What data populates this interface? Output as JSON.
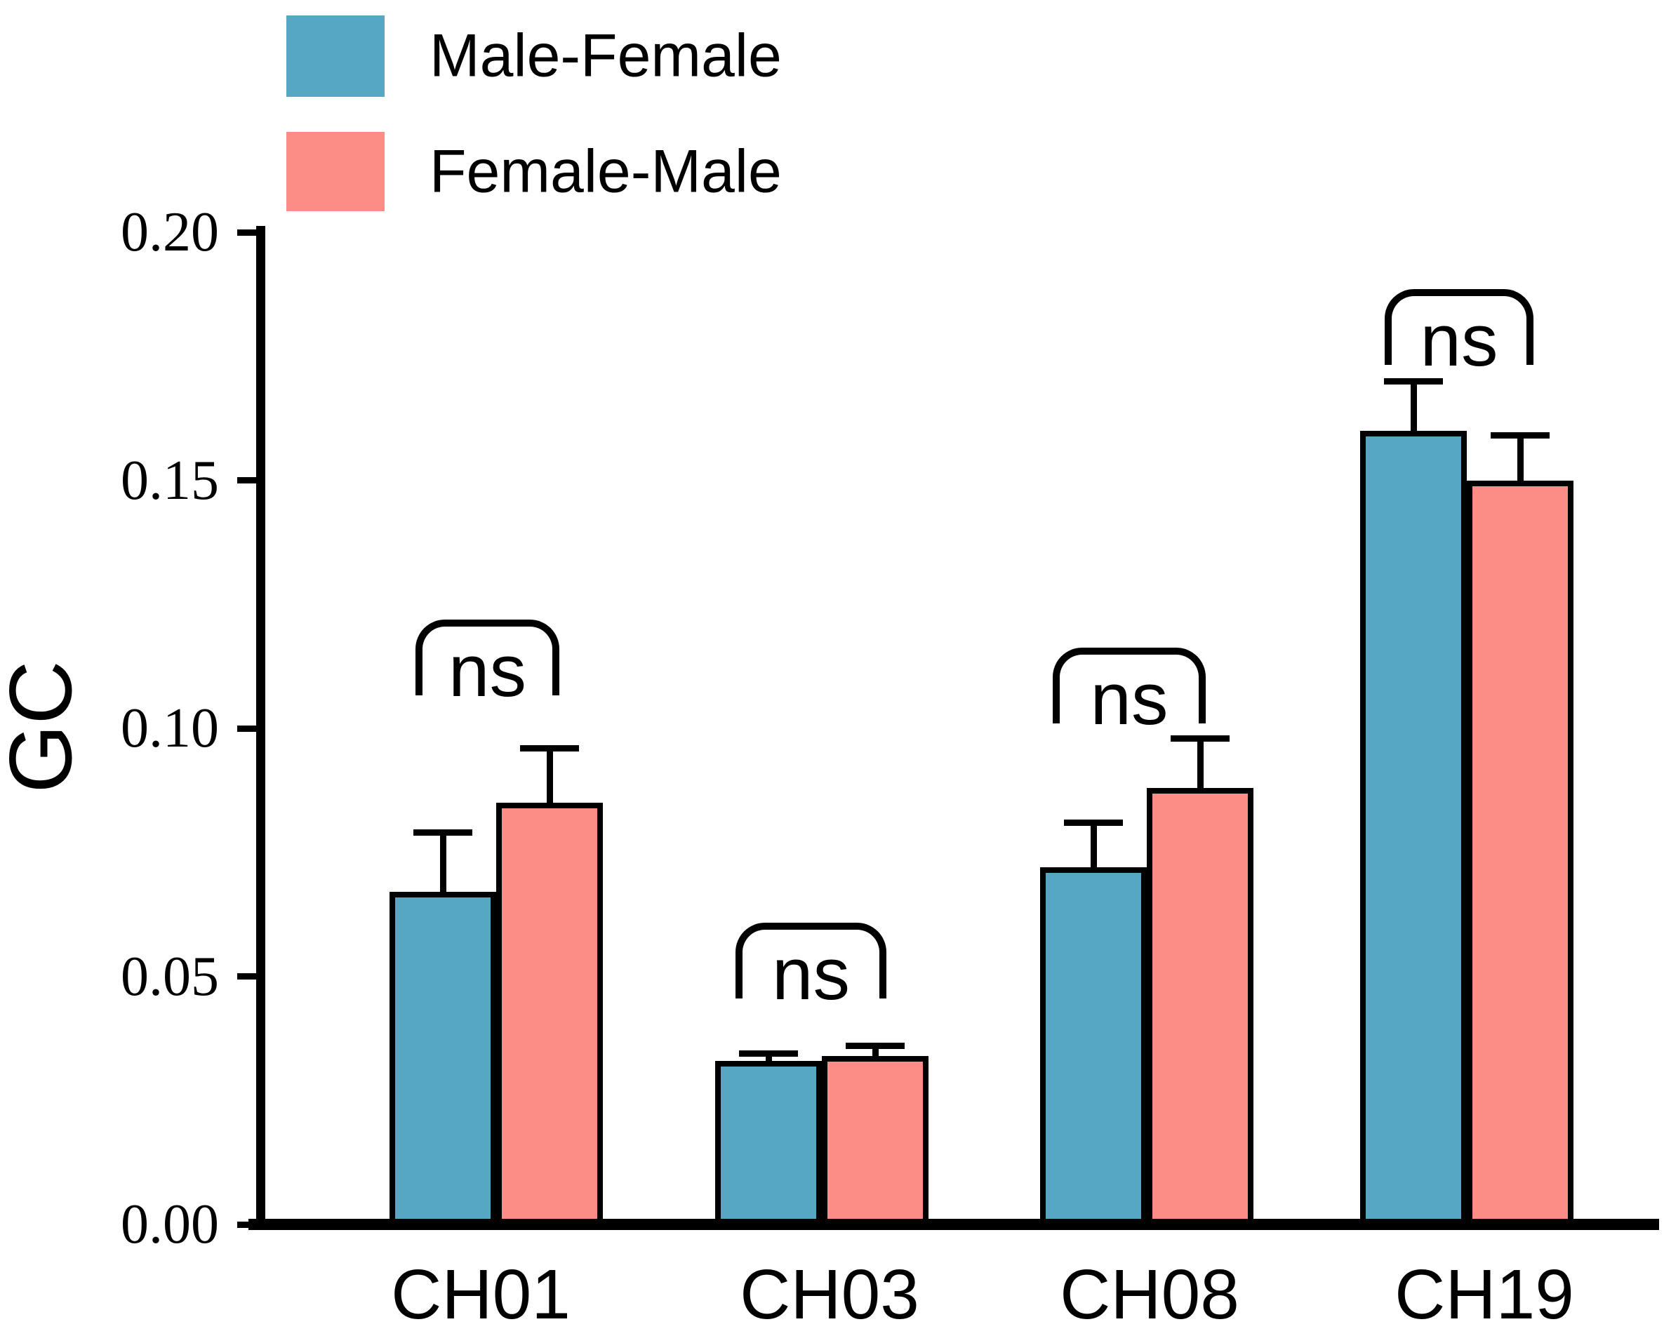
{
  "legend": {
    "items": [
      {
        "label": "Male-Female",
        "color": "#56A7C4"
      },
      {
        "label": "Female-Male",
        "color": "#FC8D86"
      }
    ]
  },
  "y_axis": {
    "label": "GC",
    "tick_labels": [
      "0.20",
      "0.15",
      "0.10",
      "0.05",
      "0.00"
    ],
    "tick_values": [
      0.2,
      0.15,
      0.1,
      0.05,
      0.0
    ]
  },
  "x_axis": {
    "categories": [
      "CH01",
      "CH03",
      "CH08",
      "CH19"
    ]
  },
  "annotations": {
    "labels": [
      "ns",
      "ns",
      "ns",
      "ns"
    ]
  },
  "chart_data": {
    "type": "bar",
    "title": "",
    "xlabel": "",
    "ylabel": "GC",
    "ylim": [
      0,
      0.2
    ],
    "yticks": [
      0.0,
      0.05,
      0.1,
      0.15,
      0.2
    ],
    "grid": false,
    "legend_position": "top-left",
    "categories": [
      "CH01",
      "CH03",
      "CH08",
      "CH19"
    ],
    "series": [
      {
        "name": "Male-Female",
        "color": "#56A7C4",
        "values": [
          0.067,
          0.033,
          0.072,
          0.16
        ],
        "errors_plus": [
          0.012,
          0.0015,
          0.009,
          0.01
        ]
      },
      {
        "name": "Female-Male",
        "color": "#FC8D86",
        "values": [
          0.085,
          0.034,
          0.088,
          0.15
        ],
        "errors_plus": [
          0.011,
          0.002,
          0.01,
          0.009
        ]
      }
    ],
    "significance": [
      {
        "pair": "CH01",
        "label": "ns"
      },
      {
        "pair": "CH03",
        "label": "ns"
      },
      {
        "pair": "CH08",
        "label": "ns"
      },
      {
        "pair": "CH19",
        "label": "ns"
      }
    ]
  }
}
